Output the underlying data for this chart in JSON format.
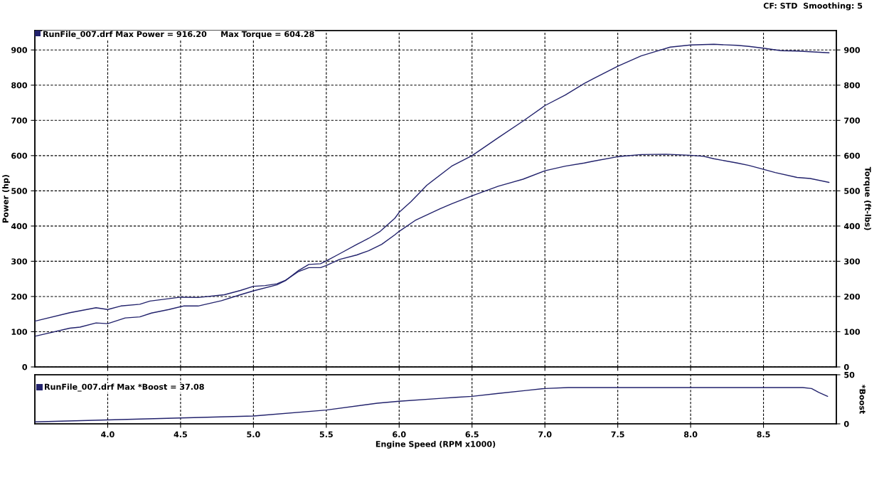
{
  "chart_data": [
    {
      "type": "line",
      "annotations": [
        "RunFile_007.drf Max Power = 916.20     Max Torque = 604.28",
        "CF: STD  Smoothing: 5"
      ],
      "ylabel": "Power (hp)",
      "y2label": "Torque (ft-lbs)",
      "xlim": [
        3.5,
        9.0
      ],
      "ylim": [
        0,
        955
      ],
      "yticks": [
        0,
        100,
        200,
        300,
        400,
        500,
        600,
        700,
        800,
        900
      ],
      "y2lim": [
        0,
        955
      ],
      "y2ticks": [
        0,
        100,
        200,
        300,
        400,
        500,
        600,
        700,
        800,
        900
      ],
      "grid": true,
      "tick_labels": "y",
      "series": [
        {
          "color": "#22226c",
          "x": [
            3.5,
            3.74,
            3.81,
            3.92,
            4.0,
            4.12,
            4.22,
            4.3,
            4.42,
            4.52,
            4.62,
            4.78,
            4.91,
            5.0,
            5.16,
            5.22,
            5.31,
            5.38,
            5.46,
            5.5,
            5.59,
            5.71,
            5.79,
            5.87,
            5.97,
            6.0,
            6.08,
            6.19,
            6.36,
            6.5,
            6.68,
            6.85,
            7.0,
            7.14,
            7.27,
            7.33,
            7.5,
            7.66,
            7.74,
            7.86,
            8.0,
            8.16,
            8.32,
            8.4,
            8.5,
            8.62,
            8.73,
            8.82,
            8.95
          ],
          "values": [
            87,
            110,
            113,
            125,
            123,
            139,
            142,
            153,
            163,
            173,
            173,
            188,
            205,
            216,
            233,
            245,
            274,
            291,
            293,
            301,
            321,
            348,
            365,
            385,
            422,
            439,
            469,
            516,
            570,
            600,
            651,
            698,
            742,
            772,
            805,
            818,
            854,
            883,
            893,
            908,
            914,
            916,
            913,
            910,
            905,
            898,
            897,
            895,
            892
          ]
        },
        {
          "color": "#22226c",
          "axis": "y2",
          "x": [
            3.5,
            3.74,
            3.92,
            4.0,
            4.09,
            4.22,
            4.29,
            4.5,
            4.62,
            4.8,
            4.91,
            5.0,
            5.08,
            5.16,
            5.22,
            5.31,
            5.38,
            5.46,
            5.5,
            5.59,
            5.71,
            5.79,
            5.88,
            5.97,
            6.0,
            6.11,
            6.28,
            6.36,
            6.5,
            6.68,
            6.85,
            7.0,
            7.14,
            7.27,
            7.33,
            7.5,
            7.66,
            7.83,
            8.0,
            8.09,
            8.16,
            8.32,
            8.4,
            8.5,
            8.58,
            8.73,
            8.82,
            8.95
          ],
          "values": [
            130,
            154,
            168,
            163,
            173,
            178,
            187,
            198,
            197,
            205,
            217,
            229,
            231,
            236,
            246,
            271,
            282,
            282,
            288,
            305,
            318,
            330,
            348,
            375,
            385,
            416,
            449,
            463,
            486,
            513,
            533,
            557,
            570,
            579,
            584,
            597,
            603,
            604,
            601,
            598,
            591,
            579,
            572,
            561,
            552,
            538,
            535,
            524
          ]
        }
      ]
    },
    {
      "type": "line",
      "annotations": [
        "RunFile_007.drf Max *Boost = 37.08"
      ],
      "xlabel": "Engine Speed (RPM x1000)",
      "y2label": "*Boost",
      "xlim": [
        3.5,
        9.0
      ],
      "xticks": [
        {
          "value": 4,
          "label": "4.0"
        },
        4.5,
        {
          "value": 5,
          "label": "5.0"
        },
        5.5,
        {
          "value": 6,
          "label": "6.0"
        },
        6.5,
        {
          "value": 7,
          "label": "7.0"
        },
        7.5,
        {
          "value": 8,
          "label": "8.0"
        },
        8.5
      ],
      "y2lim": [
        0,
        50
      ],
      "y2ticks": [
        0,
        50
      ],
      "grid": "x",
      "series": [
        {
          "color": "#22226c",
          "axis": "y2",
          "x": [
            3.5,
            4.0,
            4.5,
            5.0,
            5.5,
            5.85,
            6.0,
            6.29,
            6.39,
            6.5,
            6.68,
            6.87,
            7.0,
            7.16,
            7.5,
            7.84,
            8.0,
            8.35,
            8.39,
            8.5,
            8.77,
            8.83,
            8.88,
            8.94
          ],
          "values": [
            2,
            4,
            6,
            8,
            14,
            21,
            23,
            26,
            27,
            28,
            31,
            34,
            36,
            37,
            37,
            37,
            37,
            37,
            37,
            37,
            37,
            36,
            32,
            28
          ]
        }
      ]
    }
  ]
}
